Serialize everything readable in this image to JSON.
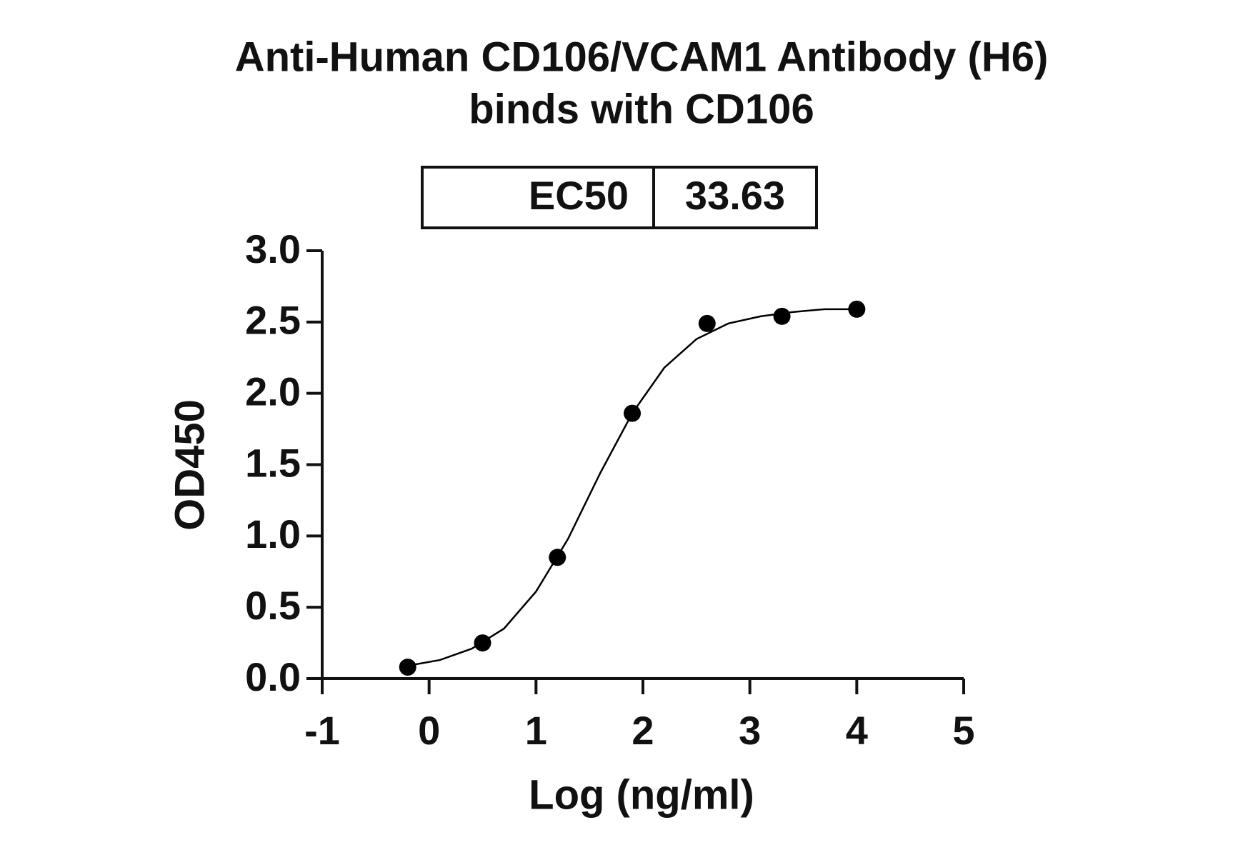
{
  "chart_data": {
    "type": "scatter",
    "title": "Anti-Human CD106/VCAM1 Antibody (H6)",
    "subtitle": "binds with CD106",
    "ec50_label": "EC50",
    "ec50_value": 33.63,
    "x_label": "Log (ng/ml)",
    "y_label": "OD450",
    "color": "#000000",
    "points": {
      "x": [
        -0.2,
        0.5,
        1.2,
        1.9,
        2.6,
        3.3,
        4.0
      ],
      "y": [
        0.08,
        0.25,
        0.85,
        1.86,
        2.49,
        2.54,
        2.59
      ]
    },
    "fit": {
      "x": [
        -0.2,
        0.1,
        0.4,
        0.7,
        1.0,
        1.3,
        1.6,
        1.9,
        2.2,
        2.5,
        2.8,
        3.1,
        3.4,
        3.7,
        4.0
      ],
      "y": [
        0.09,
        0.13,
        0.21,
        0.35,
        0.61,
        0.98,
        1.44,
        1.86,
        2.18,
        2.38,
        2.49,
        2.54,
        2.57,
        2.59,
        2.59
      ]
    },
    "xlim": [
      -1,
      5
    ],
    "xticks": [
      -1,
      0,
      1,
      2,
      3,
      4,
      5
    ],
    "ylim": [
      0,
      3
    ],
    "yticks": [
      {
        "value": 0,
        "label": "0.0"
      },
      0.5,
      {
        "value": 1,
        "label": "1.0"
      },
      1.5,
      {
        "value": 2,
        "label": "2.0"
      },
      2.5,
      {
        "value": 3,
        "label": "3.0"
      }
    ]
  }
}
